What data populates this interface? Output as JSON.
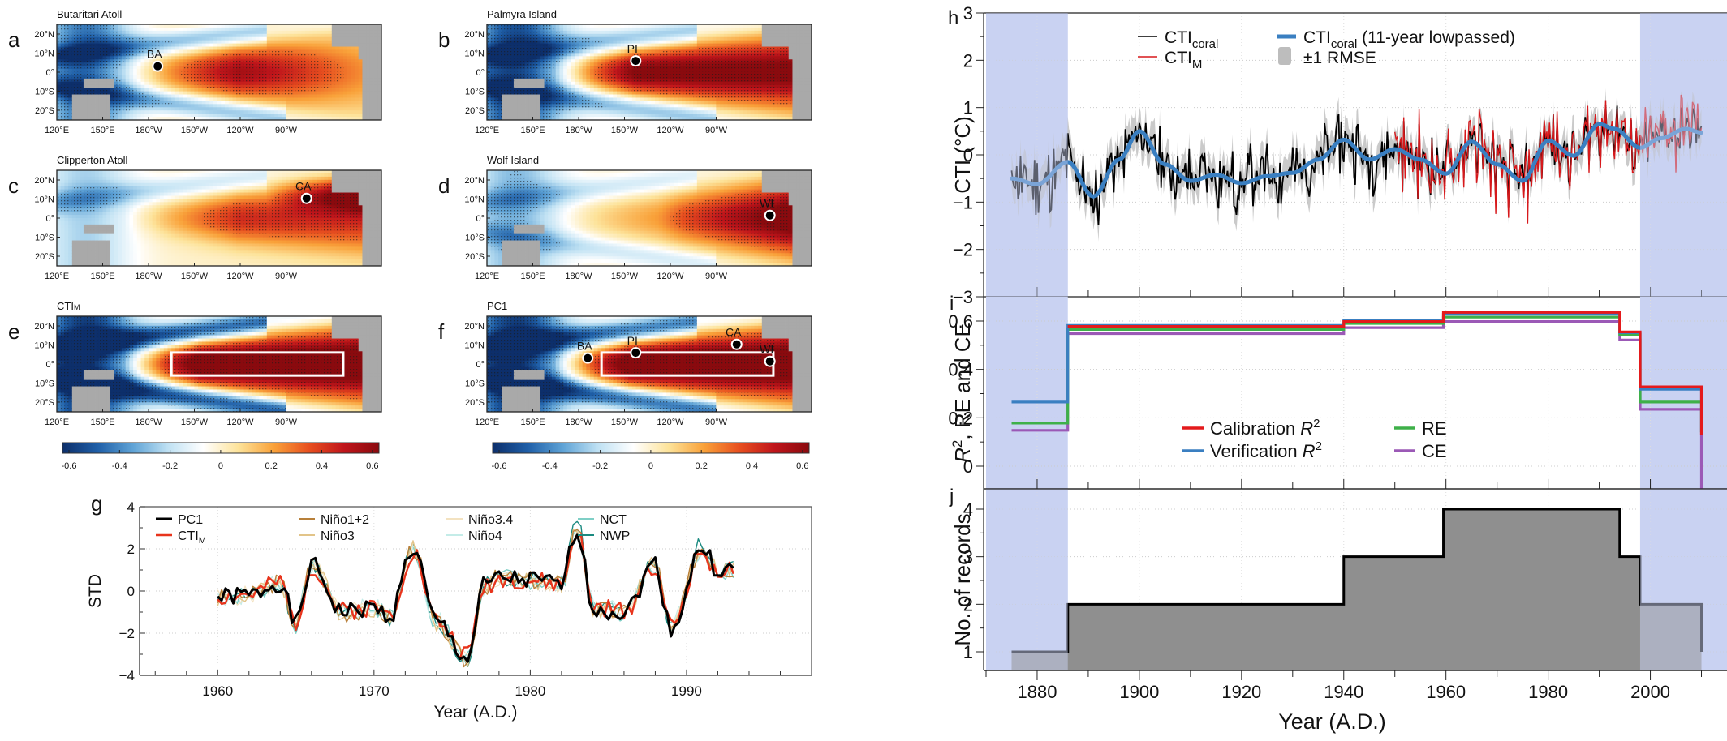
{
  "figure": {
    "panel_letters": [
      "a",
      "b",
      "c",
      "d",
      "e",
      "f",
      "g",
      "h",
      "i",
      "j"
    ]
  },
  "maps": {
    "lat_ticks": [
      "20°N",
      "10°N",
      "0°",
      "10°S",
      "20°S"
    ],
    "lon_ticks": [
      "120°E",
      "150°E",
      "180°W",
      "150°W",
      "120°W",
      "90°W"
    ],
    "panels": [
      {
        "letter": "a",
        "title": "Butaritari Atoll",
        "sites": [
          {
            "code": "BA",
            "lon": 172.8,
            "lat": 3.1
          }
        ],
        "box": false,
        "pattern": "ba"
      },
      {
        "letter": "b",
        "title": "Palmyra Island",
        "sites": [
          {
            "code": "PI",
            "lon": -162.1,
            "lat": 5.9
          }
        ],
        "box": false,
        "pattern": "pi"
      },
      {
        "letter": "c",
        "title": "Clipperton Atoll",
        "sites": [
          {
            "code": "CA",
            "lon": -109.2,
            "lat": 10.3
          }
        ],
        "box": false,
        "pattern": "ca"
      },
      {
        "letter": "d",
        "title": "Wolf Island",
        "sites": [
          {
            "code": "WI",
            "lon": -91.8,
            "lat": 1.4
          }
        ],
        "box": false,
        "pattern": "wi"
      },
      {
        "letter": "e",
        "title": "CTIM",
        "title_sub": "",
        "sites": [],
        "box": true,
        "pattern": "cti"
      },
      {
        "letter": "f",
        "title": "PC1",
        "sites": [
          {
            "code": "BA",
            "lon": 172.8,
            "lat": 3.1
          },
          {
            "code": "PI",
            "lon": -162.1,
            "lat": 5.9
          },
          {
            "code": "CA",
            "lon": -109.2,
            "lat": 10.3
          },
          {
            "code": "WI",
            "lon": -91.8,
            "lat": 1.4
          }
        ],
        "box": true,
        "pattern": "pc1"
      }
    ],
    "box_region": {
      "lon_min": 180,
      "lon_max": -90,
      "lat_min": -6,
      "lat_max": 6
    },
    "colorbar": {
      "ticks": [
        "-0.6",
        "-0.4",
        "-0.2",
        "0",
        "0.2",
        "0.4",
        "0.6"
      ],
      "range": [
        -0.65,
        0.65
      ],
      "colors": [
        "#0d2f6b",
        "#1f5fa8",
        "#5fa3d6",
        "#bfe1f3",
        "#ffffff",
        "#fde39a",
        "#f9a23a",
        "#e8501f",
        "#c0151b",
        "#8a0a0e"
      ]
    }
  },
  "chart_data": [
    {
      "id": "g",
      "type": "line",
      "title": "",
      "xlabel": "Year (A.D.)",
      "ylabel": "STD",
      "xlim": [
        1955,
        1998
      ],
      "ylim": [
        -4,
        4
      ],
      "xticks": [
        1960,
        1970,
        1980,
        1990
      ],
      "yticks": [
        -4,
        -2,
        0,
        2,
        4
      ],
      "grid": true,
      "legend": "top",
      "x_start": 1960,
      "x_step": 0.25,
      "series": [
        {
          "name": "PC1",
          "color": "#000000",
          "width": 3,
          "seed": 1,
          "scale": 1.0
        },
        {
          "name": "CTIM",
          "color": "#e8341c",
          "width": 2.4,
          "seed": 2,
          "scale": 0.95
        },
        {
          "name": "Niño1+2",
          "color": "#b8803a",
          "width": 1.4,
          "seed": 3,
          "scale": 1.05
        },
        {
          "name": "Niño3",
          "color": "#e2c489",
          "width": 1.4,
          "seed": 4,
          "scale": 1.0
        },
        {
          "name": "Niño3.4",
          "color": "#f3e2c0",
          "width": 1.2,
          "seed": 5,
          "scale": 1.0
        },
        {
          "name": "Niño4",
          "color": "#c4ece8",
          "width": 1.2,
          "seed": 6,
          "scale": 0.95
        },
        {
          "name": "NCT",
          "color": "#7fcfc6",
          "width": 1.4,
          "seed": 7,
          "scale": 1.0
        },
        {
          "name": "NWP",
          "color": "#1a8a80",
          "width": 1.4,
          "seed": 8,
          "scale": 1.1
        }
      ],
      "anchor_years": [
        1960,
        1962,
        1964,
        1965,
        1966,
        1968,
        1970,
        1971,
        1972.5,
        1974,
        1976,
        1977,
        1978,
        1980,
        1982,
        1983,
        1984,
        1986,
        1988,
        1989,
        1991,
        1992,
        1993
      ],
      "anchor_values": [
        -0.3,
        -0.2,
        0.4,
        -1.6,
        1.2,
        -1.0,
        -0.8,
        -1.2,
        2.0,
        -1.5,
        -3.2,
        0.2,
        0.6,
        0.5,
        0.3,
        3.0,
        -0.8,
        -1.0,
        1.3,
        -1.8,
        2.0,
        1.0,
        1.0
      ]
    },
    {
      "id": "h",
      "type": "line",
      "xlabel": "",
      "ylabel": "CTI (°C)",
      "xlim": [
        1870,
        2015
      ],
      "ylim": [
        -3,
        3
      ],
      "yticks": [
        -3,
        -2,
        -1,
        0,
        1,
        2,
        3
      ],
      "grid": true,
      "legend": "top-left",
      "shaded_periods": [
        [
          1870,
          1886
        ],
        [
          1998,
          2015
        ]
      ],
      "legend_items": [
        {
          "label": "CTI",
          "sub": "coral",
          "color": "#000000",
          "kind": "line"
        },
        {
          "label": "CTI",
          "sub": "M",
          "color": "#d7191c",
          "kind": "line"
        },
        {
          "label": "CTI",
          "sub": "coral",
          "suffix": " (11-year lowpassed)",
          "color": "#3a7fc1",
          "kind": "thick"
        },
        {
          "label": "±1 RMSE",
          "sub": "",
          "color": "#bdbdbd",
          "kind": "patch"
        }
      ],
      "series": [
        {
          "name": "CTIcoral",
          "color": "#000000",
          "x_range": [
            1875,
            2010
          ]
        },
        {
          "name": "CTIM",
          "color": "#d7191c",
          "x_range": [
            1950,
            2010
          ]
        },
        {
          "name": "CTIcoral (11-year lowpassed)",
          "color": "#3a7fc1",
          "x": [
            1875,
            1880,
            1886,
            1891,
            1896,
            1900,
            1905,
            1910,
            1915,
            1920,
            1925,
            1930,
            1935,
            1940,
            1945,
            1950,
            1955,
            1960,
            1965,
            1970,
            1975,
            1980,
            1985,
            1990,
            1993,
            1998,
            2002,
            2007,
            2010
          ],
          "y": [
            -0.5,
            -0.62,
            -0.15,
            -0.88,
            -0.1,
            0.5,
            -0.2,
            -0.55,
            -0.42,
            -0.6,
            -0.45,
            -0.38,
            -0.1,
            0.32,
            -0.1,
            0.12,
            -0.1,
            -0.4,
            0.28,
            -0.2,
            -0.55,
            0.3,
            -0.02,
            0.65,
            0.55,
            0.15,
            0.35,
            0.55,
            0.47
          ]
        },
        {
          "name": "±1 RMSE",
          "color": "#bdbdbd"
        }
      ]
    },
    {
      "id": "i",
      "type": "line",
      "ylabel": "R², RE and CE",
      "xlim": [
        1870,
        2015
      ],
      "ylim": [
        -0.12,
        0.67
      ],
      "yticks": [
        0,
        0.2,
        0.4,
        0.6
      ],
      "grid": true,
      "legend": "bottom-center",
      "shaded_periods": [
        [
          1870,
          1886
        ],
        [
          1998,
          2015
        ]
      ],
      "breaks": [
        1875,
        1886,
        1940,
        1959.5,
        1994,
        1998,
        2010
      ],
      "series": [
        {
          "name": "Calibration R2",
          "label": "Calibration ",
          "italic": "R",
          "sup": "2",
          "color": "#e41a1c",
          "values": [
            null,
            0.578,
            0.598,
            0.636,
            0.555,
            0.328
          ]
        },
        {
          "name": "Verification R2",
          "label": "Verification ",
          "italic": "R",
          "sup": "2",
          "color": "#3a7fc1",
          "values": [
            0.265,
            0.582,
            0.602,
            0.628,
            0.552,
            0.318
          ]
        },
        {
          "name": "RE",
          "label": "RE",
          "italic": "",
          "sup": "",
          "color": "#3eb049",
          "values": [
            0.178,
            0.565,
            0.59,
            0.616,
            0.545,
            0.265
          ]
        },
        {
          "name": "CE",
          "label": "CE",
          "italic": "",
          "sup": "",
          "color": "#9b59b6",
          "values": [
            0.148,
            0.548,
            0.573,
            0.598,
            0.522,
            0.235
          ]
        }
      ]
    },
    {
      "id": "j",
      "type": "area",
      "xlabel": "Year (A.D.)",
      "ylabel": "No. of records",
      "xlim": [
        1870,
        2015
      ],
      "ylim": [
        0.6,
        4.4
      ],
      "xticks": [
        1880,
        1900,
        1920,
        1940,
        1960,
        1980,
        2000
      ],
      "yticks": [
        1,
        2,
        3,
        4
      ],
      "grid": true,
      "shaded_periods": [
        [
          1870,
          1886
        ],
        [
          1998,
          2015
        ]
      ],
      "steps": [
        {
          "from": 1875,
          "to": 1886,
          "value": 1
        },
        {
          "from": 1886,
          "to": 1940,
          "value": 2
        },
        {
          "from": 1940,
          "to": 1959.5,
          "value": 3
        },
        {
          "from": 1959.5,
          "to": 1994,
          "value": 4
        },
        {
          "from": 1994,
          "to": 1998,
          "value": 3
        },
        {
          "from": 1998,
          "to": 2010,
          "value": 2
        }
      ]
    }
  ]
}
